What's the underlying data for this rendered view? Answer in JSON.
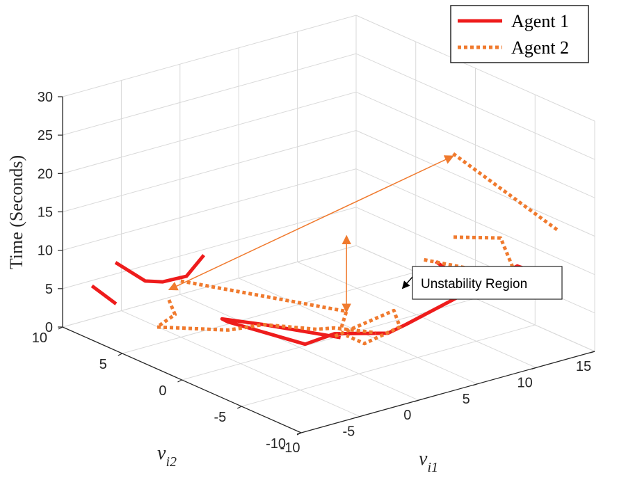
{
  "chart_data": {
    "type": "line3d",
    "zlabel": "Time (Seconds)",
    "xlabel": {
      "base": "v",
      "sub": "i1"
    },
    "ylabel": {
      "base": "v",
      "sub": "i2"
    },
    "xlim": [
      -10,
      15
    ],
    "ylim": [
      -10,
      10
    ],
    "zlim": [
      0,
      30
    ],
    "x_ticks": [
      "-10",
      "-5",
      "0",
      "5",
      "10",
      "15"
    ],
    "y_ticks": [
      "-10",
      "-5",
      "0",
      "5",
      "10"
    ],
    "z_ticks": [
      "0",
      "5",
      "10",
      "15",
      "20",
      "25",
      "30"
    ],
    "grid": true,
    "legend_position": "top-right",
    "colors": {
      "agent1": "#ee1c1c",
      "agent2": "#f07a2e",
      "grid": "#d9d9d9",
      "axis": "#262626"
    },
    "series": [
      {
        "name": "Agent 1",
        "style": "solid",
        "segments": [
          [
            [
              -7.5,
              10,
              4.3
            ],
            [
              -9,
              6.5,
              5.0
            ]
          ],
          [
            [
              -5.5,
              10,
              6.5
            ],
            [
              -5.5,
              7.5,
              5.8
            ],
            [
              -3.5,
              8,
              4.5
            ],
            [
              -2.5,
              7,
              5.5
            ],
            [
              0,
              8,
              6.5
            ]
          ],
          [
            [
              3.5,
              -8,
              15.2
            ],
            [
              4.5,
              -8,
              13.7
            ],
            [
              14.5,
              -6,
              7.5
            ],
            [
              14.5,
              -4,
              7.2
            ],
            [
              5,
              -4,
              3.6
            ],
            [
              4.5,
              -3,
              2.0
            ],
            [
              3,
              0,
              0.5
            ],
            [
              0.5,
              0,
              0.2
            ],
            [
              -1,
              5,
              0.3
            ],
            [
              -1.5,
              5,
              0.9
            ],
            [
              0,
              3,
              0.9
            ],
            [
              2.5,
              -1,
              0.9
            ]
          ]
        ]
      },
      {
        "name": "Agent 2",
        "style": "dotted",
        "segments": [
          [
            [
              -4.5,
              6.5,
              3.6
            ],
            [
              -5,
              5.5,
              2.6
            ],
            [
              -5.5,
              6.5,
              0.5
            ],
            [
              -2.5,
              3.5,
              0.9
            ],
            [
              0,
              3,
              0.9
            ],
            [
              2.5,
              1,
              0.6
            ],
            [
              3.5,
              0.5,
              0.7
            ],
            [
              6,
              -0.5,
              -0.3
            ]
          ],
          [
            [
              -4,
              6,
              6.2
            ],
            [
              3,
              -1,
              4.1
            ],
            [
              3.5,
              0,
              0.7
            ]
          ],
          [
            [
              1,
              -2,
              2.4
            ],
            [
              4.5,
              -3.5,
              5.3
            ],
            [
              4.5,
              -4,
              3.5
            ],
            [
              2.5,
              -3,
              1.5
            ],
            [
              2.5,
              -1.5,
              1.5
            ]
          ],
          [
            [
              6,
              -7,
              27.5
            ],
            [
              14,
              -8,
              14.7
            ]
          ],
          [
            [
              3,
              -7.5,
              15.3
            ],
            [
              9.5,
              -8.5,
              11.0
            ]
          ],
          [
            [
              4.5,
              -8.5,
              18.3
            ],
            [
              7.5,
              -9.5,
              17.6
            ],
            [
              8,
              -10,
              14.0
            ]
          ]
        ]
      }
    ],
    "annotations": [
      {
        "text": "Unstability Region",
        "target": [
          5.5,
          -3,
          7.5
        ]
      }
    ],
    "arrows": [
      {
        "from": [
          -5,
          6,
          5.5
        ],
        "to": [
          6,
          -7,
          27.2
        ]
      },
      {
        "from": [
          3,
          -1,
          4.0
        ],
        "to": [
          2.5,
          -1.5,
          14.5
        ]
      }
    ]
  }
}
